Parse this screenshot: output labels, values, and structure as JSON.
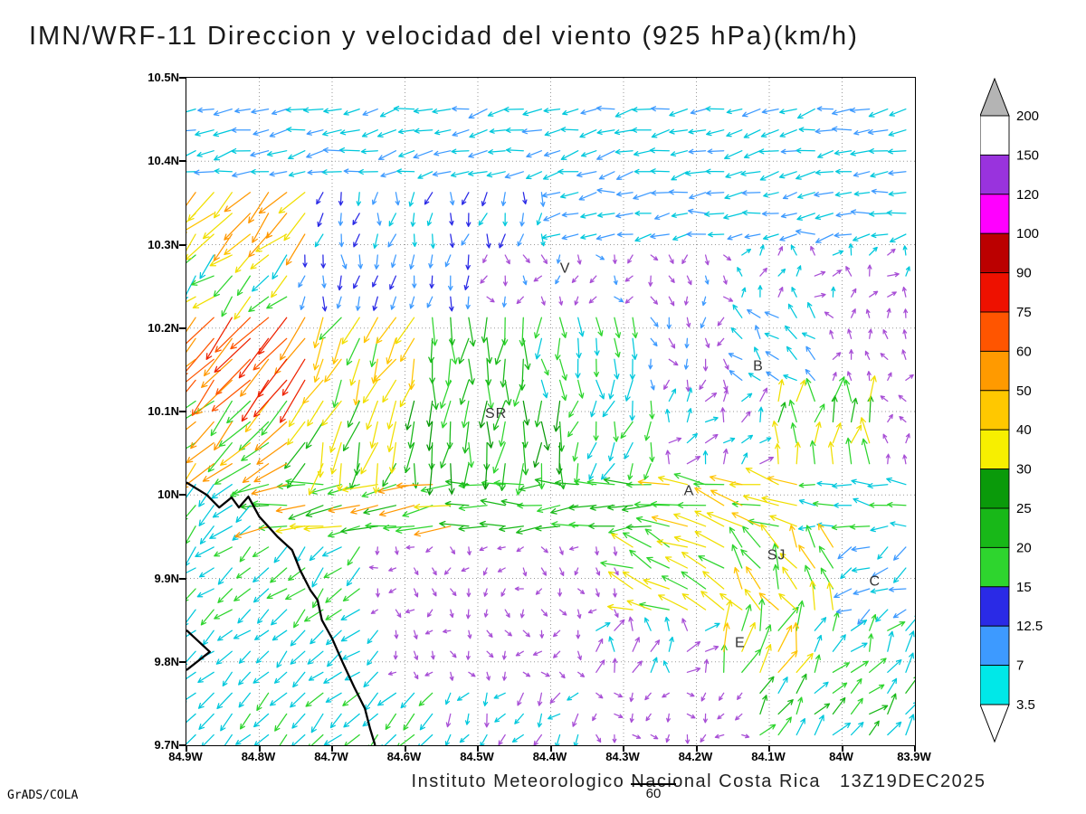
{
  "title": "IMN/WRF-11 Direccion y velocidad del viento (925 hPa)(km/h)",
  "credits": "GrADS/COLA",
  "footer": {
    "institution": "Instituto Meteorologico Nacional Costa Rica",
    "datetime": "13Z19DEC2025",
    "ref_label": "60"
  },
  "chart_data": {
    "type": "vector_field",
    "variable": "Direccion y velocidad del viento",
    "model": "IMN/WRF-11",
    "level": "925 hPa",
    "units": "km/h",
    "lon_west": 84.9,
    "lon_east": 83.9,
    "lat_south": 9.7,
    "lat_north": 10.5,
    "grid_step": 0.025,
    "grid_dotted": true,
    "x_axis": {
      "ticks": [
        "84.9W",
        "84.8W",
        "84.7W",
        "84.6W",
        "84.5W",
        "84.4W",
        "84.3W",
        "84.2W",
        "84.1W",
        "84W",
        "83.9W"
      ]
    },
    "y_axis": {
      "ticks": [
        "10.5N",
        "10.4N",
        "10.3N",
        "10.2N",
        "10.1N",
        "10N",
        "9.9N",
        "9.8N",
        "9.7N"
      ]
    },
    "colorbar": {
      "labels": [
        "200",
        "150",
        "120",
        "100",
        "90",
        "75",
        "60",
        "50",
        "40",
        "30",
        "25",
        "20",
        "15",
        "12.5",
        "7",
        "3.5"
      ],
      "segment_colors": [
        "#ffffff",
        "#9933dd",
        "#ff00ff",
        "#bb0000",
        "#ee1100",
        "#ff5500",
        "#ff9a00",
        "#ffc800",
        "#f7ef00",
        "#0a9a0a",
        "#18b818",
        "#2ed52e",
        "#2a2ae6",
        "#3d9aff",
        "#00e8e8"
      ],
      "over_color": "#b4b4b4",
      "under_color": "#ffffff"
    },
    "stations": [
      {
        "t": "V",
        "lon": 84.38,
        "lat": 10.272
      },
      {
        "t": "B",
        "lon": 84.115,
        "lat": 10.155
      },
      {
        "t": "SR",
        "lon": 84.475,
        "lat": 10.098
      },
      {
        "t": "A",
        "lon": 84.21,
        "lat": 10.005
      },
      {
        "t": "SJ",
        "lon": 84.09,
        "lat": 9.928
      },
      {
        "t": "C",
        "lon": 83.955,
        "lat": 9.897
      },
      {
        "t": "E",
        "lon": 84.14,
        "lat": 9.823
      }
    ],
    "coastline": [
      [
        [
          84.9,
          10.015
        ],
        [
          84.872,
          10.0
        ],
        [
          84.855,
          9.985
        ],
        [
          84.838,
          9.997
        ],
        [
          84.828,
          9.985
        ],
        [
          84.815,
          9.998
        ],
        [
          84.8,
          9.974
        ],
        [
          84.775,
          9.95
        ],
        [
          84.755,
          9.934
        ],
        [
          84.744,
          9.91
        ],
        [
          84.73,
          9.886
        ],
        [
          84.72,
          9.874
        ],
        [
          84.714,
          9.85
        ],
        [
          84.7,
          9.828
        ],
        [
          84.686,
          9.8
        ],
        [
          84.67,
          9.77
        ],
        [
          84.655,
          9.744
        ],
        [
          84.648,
          9.72
        ],
        [
          84.641,
          9.7
        ]
      ],
      [
        [
          84.9,
          9.838
        ],
        [
          84.868,
          9.812
        ],
        [
          84.9,
          9.79
        ]
      ]
    ],
    "wind_regions": [
      {
        "la": [
          10.38,
          10.52
        ],
        "lo": [
          84.92,
          83.88
        ],
        "d": 258,
        "s": 13,
        "c": [
          "#00c8dc",
          "#00c8dc",
          "#3d9aff"
        ],
        "j": 16
      },
      {
        "la": [
          10.3,
          10.38
        ],
        "lo": [
          84.92,
          84.72
        ],
        "d": 225,
        "s": 36,
        "c": [
          "#ffc400",
          "#f0df00",
          "#ff9800"
        ],
        "j": 18
      },
      {
        "la": [
          10.3,
          10.38
        ],
        "lo": [
          84.72,
          84.4
        ],
        "d": 192,
        "s": 8,
        "c": [
          "#3d9aff",
          "#2a2ae6",
          "#00c8dc"
        ],
        "j": 25
      },
      {
        "la": [
          10.3,
          10.38
        ],
        "lo": [
          84.4,
          83.88
        ],
        "d": 262,
        "s": 12,
        "c": [
          "#00c8dc",
          "#3d9aff"
        ],
        "j": 18
      },
      {
        "la": [
          10.22,
          10.3
        ],
        "lo": [
          84.92,
          84.74
        ],
        "d": 228,
        "s": 22,
        "c": [
          "#00c8dc",
          "#f0df00",
          "#2ed52e"
        ],
        "j": 22
      },
      {
        "la": [
          10.22,
          10.3
        ],
        "lo": [
          84.74,
          84.5
        ],
        "d": 185,
        "s": 8,
        "c": [
          "#3d9aff",
          "#2a2ae6"
        ],
        "j": 25
      },
      {
        "la": [
          10.22,
          10.3
        ],
        "lo": [
          84.5,
          84.16
        ],
        "d": 175,
        "s": 4,
        "c": [
          "#a84fd6",
          "#a84fd6",
          "#3d9aff"
        ],
        "j": 60
      },
      {
        "la": [
          10.22,
          10.3
        ],
        "lo": [
          84.16,
          83.88
        ],
        "d": 25,
        "s": 5,
        "c": [
          "#a84fd6",
          "#00c8dc"
        ],
        "j": 55
      },
      {
        "la": [
          10.12,
          10.22
        ],
        "lo": [
          84.92,
          84.72
        ],
        "d": 222,
        "s": 58,
        "c": [
          "#ee2200",
          "#ff9800",
          "#ff5500"
        ],
        "j": 14
      },
      {
        "la": [
          10.12,
          10.22
        ],
        "lo": [
          84.72,
          84.58
        ],
        "d": 205,
        "s": 27,
        "c": [
          "#f0df00",
          "#2ed52e",
          "#ffc400"
        ],
        "j": 20
      },
      {
        "la": [
          10.12,
          10.22
        ],
        "lo": [
          84.58,
          84.42
        ],
        "d": 185,
        "s": 26,
        "c": [
          "#18b818",
          "#2ed52e"
        ],
        "j": 18
      },
      {
        "la": [
          10.12,
          10.22
        ],
        "lo": [
          84.42,
          84.28
        ],
        "d": 178,
        "s": 15,
        "c": [
          "#2ed52e",
          "#00c8dc"
        ],
        "j": 22
      },
      {
        "la": [
          10.12,
          10.22
        ],
        "lo": [
          84.28,
          84.16
        ],
        "d": 170,
        "s": 5,
        "c": [
          "#a84fd6",
          "#3d9aff"
        ],
        "j": 55
      },
      {
        "la": [
          10.12,
          10.22
        ],
        "lo": [
          84.16,
          84.02
        ],
        "d": 315,
        "s": 10,
        "c": [
          "#00c8dc",
          "#3d9aff"
        ],
        "j": 30
      },
      {
        "la": [
          10.12,
          10.22
        ],
        "lo": [
          84.02,
          83.88
        ],
        "d": 0,
        "s": 4,
        "c": [
          "#a84fd6"
        ],
        "j": 60
      },
      {
        "la": [
          10.02,
          10.12
        ],
        "lo": [
          84.92,
          84.76
        ],
        "d": 225,
        "s": 40,
        "c": [
          "#ff9800",
          "#ffc400",
          "#2ed52e"
        ],
        "j": 16
      },
      {
        "la": [
          10.02,
          10.12
        ],
        "lo": [
          84.76,
          84.6
        ],
        "d": 200,
        "s": 30,
        "c": [
          "#f0df00",
          "#18b818"
        ],
        "j": 20
      },
      {
        "la": [
          10.02,
          10.12
        ],
        "lo": [
          84.6,
          84.38
        ],
        "d": 185,
        "s": 27,
        "c": [
          "#18b818",
          "#2ed52e",
          "#0a9a0a"
        ],
        "j": 18
      },
      {
        "la": [
          10.02,
          10.12
        ],
        "lo": [
          84.38,
          84.24
        ],
        "d": 198,
        "s": 14,
        "c": [
          "#2ed52e",
          "#00c8dc"
        ],
        "j": 25
      },
      {
        "la": [
          10.02,
          10.12
        ],
        "lo": [
          84.24,
          84.1
        ],
        "d": 30,
        "s": 8,
        "c": [
          "#00c8dc",
          "#a84fd6"
        ],
        "j": 45
      },
      {
        "la": [
          10.02,
          10.12
        ],
        "lo": [
          84.1,
          83.96
        ],
        "d": 5,
        "s": 20,
        "c": [
          "#2ed52e",
          "#f0df00",
          "#18b818"
        ],
        "j": 25
      },
      {
        "la": [
          10.02,
          10.12
        ],
        "lo": [
          83.96,
          83.88
        ],
        "d": 0,
        "s": 4,
        "c": [
          "#a84fd6"
        ],
        "j": 60
      },
      {
        "la": [
          9.95,
          10.02
        ],
        "lo": [
          84.92,
          84.79
        ],
        "d": 228,
        "s": 20,
        "c": [
          "#2ed52e",
          "#00c8dc"
        ],
        "j": 18
      },
      {
        "la": [
          9.95,
          10.02
        ],
        "lo": [
          84.79,
          84.52
        ],
        "d": 262,
        "s": 33,
        "c": [
          "#2ed52e",
          "#f0df00",
          "#ff9800",
          "#18b818"
        ],
        "j": 14
      },
      {
        "la": [
          9.95,
          10.02
        ],
        "lo": [
          84.52,
          84.24
        ],
        "d": 268,
        "s": 23,
        "c": [
          "#18b818",
          "#2ed52e"
        ],
        "j": 14
      },
      {
        "la": [
          9.95,
          10.02
        ],
        "lo": [
          84.24,
          84.04
        ],
        "d": 286,
        "s": 33,
        "c": [
          "#f0df00",
          "#2ed52e",
          "#ffc400"
        ],
        "j": 16
      },
      {
        "la": [
          9.95,
          10.02
        ],
        "lo": [
          84.04,
          83.88
        ],
        "d": 272,
        "s": 13,
        "c": [
          "#00c8dc",
          "#2ed52e"
        ],
        "j": 20
      },
      {
        "la": [
          9.86,
          9.95
        ],
        "lo": [
          84.92,
          84.64
        ],
        "d": 228,
        "s": 15,
        "c": [
          "#00c8dc",
          "#2ed52e"
        ],
        "j": 20
      },
      {
        "la": [
          9.86,
          9.95
        ],
        "lo": [
          84.64,
          84.3
        ],
        "d": 200,
        "s": 3,
        "c": [
          "#a84fd6"
        ],
        "j": 75
      },
      {
        "la": [
          9.86,
          9.95
        ],
        "lo": [
          84.3,
          84.14
        ],
        "d": 292,
        "s": 27,
        "c": [
          "#f0df00",
          "#2ed52e"
        ],
        "j": 20
      },
      {
        "la": [
          9.86,
          9.95
        ],
        "lo": [
          84.14,
          83.99
        ],
        "d": 330,
        "s": 23,
        "c": [
          "#2ed52e",
          "#f0df00",
          "#ffc400"
        ],
        "j": 25
      },
      {
        "la": [
          9.86,
          9.95
        ],
        "lo": [
          83.99,
          83.88
        ],
        "d": 243,
        "s": 12,
        "c": [
          "#00c8dc",
          "#3d9aff"
        ],
        "j": 25
      },
      {
        "la": [
          9.78,
          9.86
        ],
        "lo": [
          84.92,
          84.62
        ],
        "d": 228,
        "s": 14,
        "c": [
          "#00c8dc"
        ],
        "j": 18
      },
      {
        "la": [
          9.78,
          9.86
        ],
        "lo": [
          84.62,
          84.34
        ],
        "d": 190,
        "s": 3,
        "c": [
          "#a84fd6"
        ],
        "j": 75
      },
      {
        "la": [
          9.78,
          9.86
        ],
        "lo": [
          84.34,
          84.18
        ],
        "d": 25,
        "s": 9,
        "c": [
          "#a84fd6",
          "#00c8dc"
        ],
        "j": 50
      },
      {
        "la": [
          9.78,
          9.86
        ],
        "lo": [
          84.18,
          84.04
        ],
        "d": 20,
        "s": 26,
        "c": [
          "#ffc400",
          "#f0df00",
          "#2ed52e"
        ],
        "j": 25
      },
      {
        "la": [
          9.78,
          9.86
        ],
        "lo": [
          84.04,
          83.88
        ],
        "d": 35,
        "s": 15,
        "c": [
          "#2ed52e",
          "#00c8dc"
        ],
        "j": 30
      },
      {
        "la": [
          9.69,
          9.78
        ],
        "lo": [
          84.92,
          84.55
        ],
        "d": 226,
        "s": 15,
        "c": [
          "#00c8dc",
          "#00c8dc",
          "#2ed52e"
        ],
        "j": 15
      },
      {
        "la": [
          9.69,
          9.78
        ],
        "lo": [
          84.55,
          84.34
        ],
        "d": 215,
        "s": 7,
        "c": [
          "#00c8dc",
          "#a84fd6"
        ],
        "j": 35
      },
      {
        "la": [
          9.69,
          9.78
        ],
        "lo": [
          84.34,
          84.12
        ],
        "d": 180,
        "s": 3,
        "c": [
          "#a84fd6"
        ],
        "j": 75
      },
      {
        "la": [
          9.69,
          9.78
        ],
        "lo": [
          84.12,
          83.88
        ],
        "d": 40,
        "s": 15,
        "c": [
          "#2ed52e",
          "#00c8dc",
          "#18b818"
        ],
        "j": 30
      }
    ],
    "default_region": {
      "d": 270,
      "s": 4,
      "c": [
        "#a84fd6"
      ],
      "j": 60
    },
    "calm_color": "#a84fd6"
  }
}
